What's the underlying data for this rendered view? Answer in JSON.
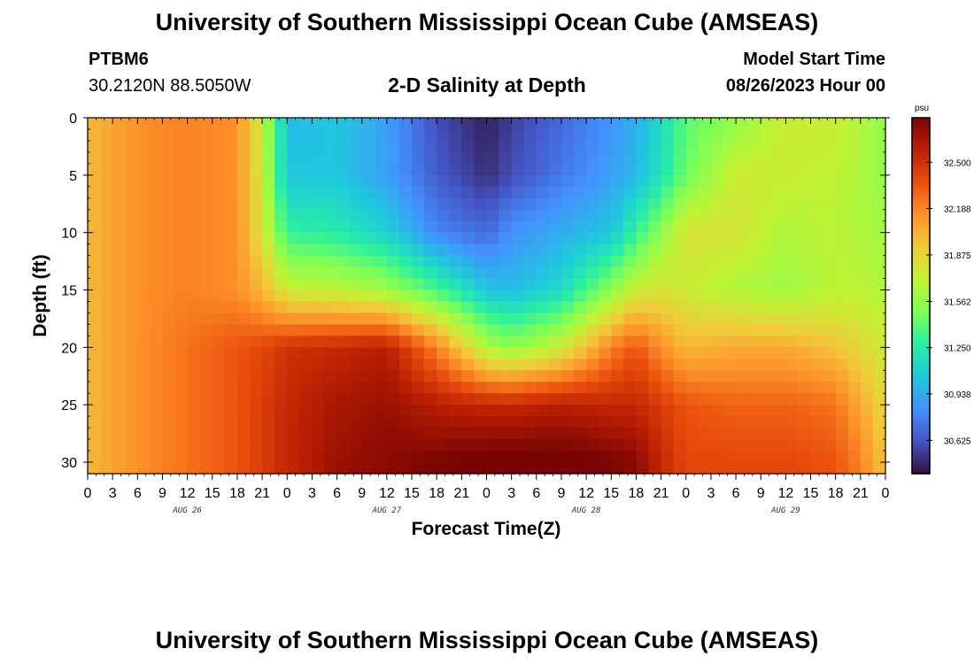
{
  "header": {
    "title": "University of Southern Mississippi Ocean Cube (AMSEAS)",
    "station_id": "PTBM6",
    "coordinates": "30.2120N  88.5050W",
    "subtitle": "2-D Salinity at Depth",
    "model_start_label": "Model Start Time",
    "model_start_value": "08/26/2023 Hour 00"
  },
  "footer": {
    "title": "University of Southern Mississippi Ocean Cube (AMSEAS)"
  },
  "chart_data": {
    "type": "heatmap",
    "title": "2-D Salinity at Depth",
    "xlabel": "Forecast Time(Z)",
    "ylabel": "Depth (ft)",
    "x_hours": [
      0,
      6,
      12,
      18,
      21,
      24,
      30,
      36,
      42,
      48,
      51,
      57,
      63,
      66,
      69,
      72,
      78,
      84,
      90,
      93,
      96
    ],
    "x_tick_labels": [
      "0",
      "3",
      "6",
      "9",
      "12",
      "15",
      "18",
      "21",
      "0",
      "3",
      "6",
      "9",
      "12",
      "15",
      "18",
      "21",
      "0",
      "3",
      "6",
      "9",
      "12",
      "15",
      "18",
      "21",
      "0",
      "3",
      "6",
      "9",
      "12",
      "15",
      "18",
      "21",
      "0"
    ],
    "day_labels": [
      "AUG 26",
      "AUG 27",
      "AUG 28",
      "AUG 29"
    ],
    "depths_ft": [
      0,
      5,
      10,
      15,
      20,
      25,
      30
    ],
    "y_tick_labels": [
      "0",
      "5",
      "10",
      "15",
      "20",
      "25",
      "30"
    ],
    "ylim": [
      0,
      31
    ],
    "xlim": [
      0,
      96
    ],
    "salinity_psu": [
      [
        32.0,
        32.15,
        32.2,
        32.15,
        31.75,
        31.0,
        31.05,
        30.9,
        30.6,
        30.45,
        30.55,
        30.7,
        30.85,
        30.95,
        31.15,
        31.4,
        31.55,
        31.75,
        31.75,
        31.65,
        31.55
      ],
      [
        32.0,
        32.15,
        32.2,
        32.15,
        31.75,
        31.05,
        31.05,
        30.9,
        30.65,
        30.5,
        30.6,
        30.75,
        30.9,
        31.0,
        31.2,
        31.45,
        31.75,
        31.75,
        31.7,
        31.65,
        31.55
      ],
      [
        32.0,
        32.15,
        32.2,
        32.15,
        31.8,
        31.3,
        31.25,
        31.1,
        30.8,
        30.7,
        30.85,
        30.95,
        31.05,
        31.3,
        31.55,
        31.8,
        31.8,
        31.65,
        31.7,
        31.65,
        31.6
      ],
      [
        32.0,
        32.15,
        32.2,
        32.15,
        32.0,
        31.75,
        31.7,
        31.6,
        31.35,
        31.05,
        31.0,
        31.15,
        31.55,
        31.75,
        31.8,
        31.75,
        31.65,
        31.6,
        31.7,
        31.7,
        31.65
      ],
      [
        32.0,
        32.15,
        32.25,
        32.35,
        32.4,
        32.5,
        32.55,
        32.6,
        32.2,
        31.65,
        31.55,
        31.75,
        32.2,
        32.35,
        32.15,
        32.0,
        32.05,
        32.05,
        31.95,
        31.85,
        31.75
      ],
      [
        32.0,
        32.15,
        32.25,
        32.35,
        32.45,
        32.55,
        32.65,
        32.7,
        32.6,
        32.55,
        32.55,
        32.6,
        32.55,
        32.55,
        32.45,
        32.35,
        32.3,
        32.3,
        32.25,
        32.05,
        31.85
      ],
      [
        32.0,
        32.15,
        32.25,
        32.35,
        32.45,
        32.55,
        32.7,
        32.75,
        32.8,
        32.85,
        32.85,
        32.85,
        32.8,
        32.75,
        32.55,
        32.4,
        32.4,
        32.4,
        32.35,
        32.2,
        31.95
      ]
    ],
    "colorbar": {
      "unit": "psu",
      "range": [
        30.4,
        32.8
      ],
      "tick_values": [
        30.625,
        30.938,
        31.25,
        31.562,
        31.875,
        32.188,
        32.5
      ],
      "tick_labels": [
        "30.625",
        "30.938",
        "31.250",
        "31.562",
        "31.875",
        "32.188",
        "32.500"
      ],
      "colors": [
        "#30123b",
        "#4454c4",
        "#4490fe",
        "#1fc8de",
        "#29efa2",
        "#7dff56",
        "#c1f334",
        "#f1ca3a",
        "#fe922a",
        "#ea4f0d",
        "#be2102",
        "#7a0403"
      ]
    }
  }
}
